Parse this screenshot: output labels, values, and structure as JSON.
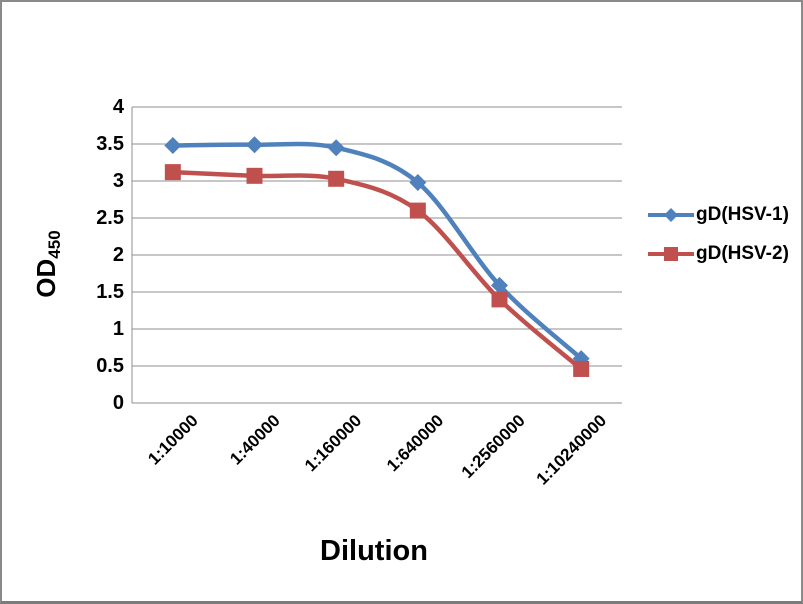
{
  "frame": {
    "background": "#ffffff",
    "border_color": "#8a8a8a",
    "gridline_color": "#8f8f8f",
    "text_color": "#000000"
  },
  "chart_data": {
    "type": "line",
    "smoothed": true,
    "grid": true,
    "legend_position": "right",
    "title": "",
    "xlabel": "Dilution",
    "ylabel": "OD",
    "ylabel_subscript": "450",
    "ylim": [
      0,
      4
    ],
    "ytick_step": 0.5,
    "yticks": [
      "4",
      "3.5",
      "3",
      "2.5",
      "2",
      "1.5",
      "1",
      "0.5",
      "0"
    ],
    "categories": [
      "1:10000",
      "1:40000",
      "1:160000",
      "1:640000",
      "1:2560000",
      "1:10240000"
    ],
    "series": [
      {
        "name": "gD(HSV-1)",
        "marker": "diamond",
        "color": "#4f81bd",
        "values": [
          3.48,
          3.49,
          3.45,
          2.98,
          1.59,
          0.6
        ]
      },
      {
        "name": "gD(HSV-2)",
        "marker": "square",
        "color": "#c0504d",
        "values": [
          3.12,
          3.07,
          3.03,
          2.6,
          1.4,
          0.46
        ]
      }
    ]
  }
}
